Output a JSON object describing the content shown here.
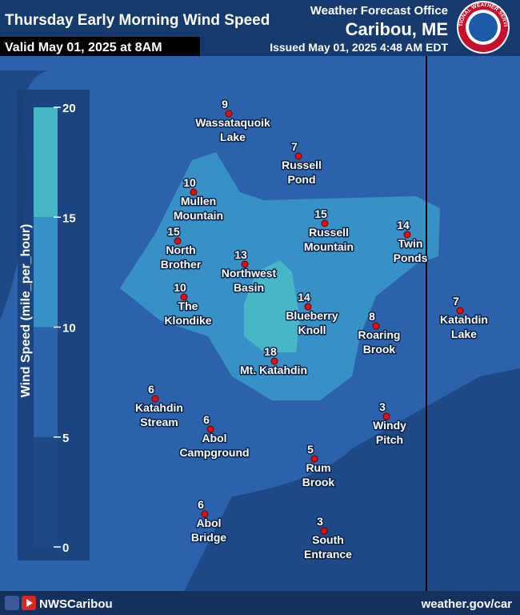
{
  "header": {
    "title": "Thursday Early Morning Wind Speed",
    "valid": "Valid May 01, 2025 at 8AM",
    "office": "Weather Forecast Office",
    "location": "Caribou, ME",
    "issued": "Issued May 01, 2025 4:48 AM EDT",
    "logo_text": "NATIONAL WEATHER SERVICE"
  },
  "legend": {
    "label": "Wind Speed (mile_per_hour)",
    "ticks": [
      0,
      5,
      10,
      15,
      20
    ],
    "colors": [
      "#1f4886",
      "#2c62ac",
      "#3790c6",
      "#47b6c6"
    ]
  },
  "stations": [
    {
      "value": "9",
      "name": [
        "Wassataquoik",
        "Lake"
      ]
    },
    {
      "value": "7",
      "name": [
        "Russell",
        "Pond"
      ]
    },
    {
      "value": "10",
      "name": [
        "Mullen",
        "Mountain"
      ]
    },
    {
      "value": "15",
      "name": [
        "Russell",
        "Mountain"
      ]
    },
    {
      "value": "14",
      "name": [
        "Twin",
        "Ponds"
      ]
    },
    {
      "value": "15",
      "name": [
        "North",
        "Brother"
      ]
    },
    {
      "value": "13",
      "name": [
        "Northwest",
        "Basin"
      ]
    },
    {
      "value": "10",
      "name": [
        "The",
        "Klondike"
      ]
    },
    {
      "value": "14",
      "name": [
        "Blueberry",
        "Knoll"
      ]
    },
    {
      "value": "8",
      "name": [
        "Roaring",
        "Brook"
      ]
    },
    {
      "value": "7",
      "name": [
        "Katahdin",
        "Lake"
      ]
    },
    {
      "value": "18",
      "name": [
        "Mt. Katahdin"
      ]
    },
    {
      "value": "6",
      "name": [
        "Katahdin",
        "Stream"
      ]
    },
    {
      "value": "6",
      "name": [
        "Abol",
        "Campground"
      ]
    },
    {
      "value": "3",
      "name": [
        "Windy",
        "Pitch"
      ]
    },
    {
      "value": "5",
      "name": [
        "Rum",
        "Brook"
      ]
    },
    {
      "value": "6",
      "name": [
        "Abol",
        "Bridge"
      ]
    },
    {
      "value": "3",
      "name": [
        "South",
        "Entrance"
      ]
    }
  ],
  "footer": {
    "social": "NWSCaribou",
    "url": "weather.gov/car"
  }
}
